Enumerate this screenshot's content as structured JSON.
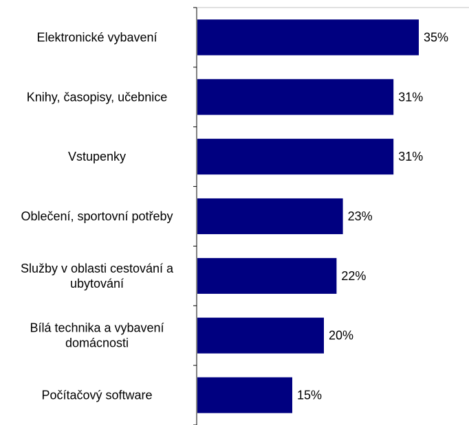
{
  "chart_data": {
    "type": "bar",
    "orientation": "horizontal",
    "title": "",
    "xlabel": "",
    "ylabel": "",
    "categories": [
      [
        "Elektronické vybavení"
      ],
      [
        "Knihy, časopisy, učebnice"
      ],
      [
        "Vstupenky"
      ],
      [
        "Oblečení, sportovní potřeby"
      ],
      [
        "Služby v oblasti cestování a",
        "ubytování"
      ],
      [
        "Bílá technika a vybavení",
        "domácnosti"
      ],
      [
        "Počítačový software"
      ]
    ],
    "values": [
      35,
      31,
      31,
      23,
      22,
      20,
      15
    ],
    "value_labels": [
      "35%",
      "31%",
      "31%",
      "23%",
      "22%",
      "20%",
      "15%"
    ],
    "unit": "%",
    "xlim": [
      0,
      40
    ],
    "grid": false,
    "legend": "none",
    "bar_color": "#000080"
  }
}
